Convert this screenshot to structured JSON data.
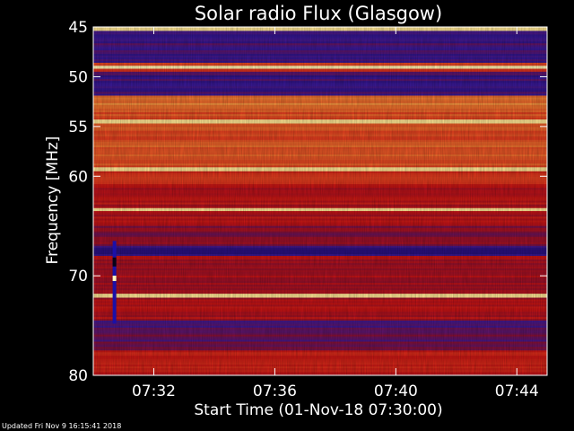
{
  "chart_data": {
    "type": "heatmap",
    "title": "Solar radio Flux (Glasgow)",
    "xlabel": "Start Time (01-Nov-18 07:30:00)",
    "ylabel": "Frequency [MHz]",
    "x_range_minutes": [
      0,
      15
    ],
    "x_ticks": [
      {
        "minutes": 2,
        "label": "07:32"
      },
      {
        "minutes": 6,
        "label": "07:36"
      },
      {
        "minutes": 10,
        "label": "07:40"
      },
      {
        "minutes": 14,
        "label": "07:44"
      }
    ],
    "y_range_mhz": [
      45,
      80
    ],
    "y_inverted": true,
    "y_ticks": [
      45,
      50,
      55,
      60,
      70,
      80
    ],
    "y_tick_labels": [
      "45",
      "50",
      "55",
      "60",
      "70",
      "80"
    ],
    "colormap": [
      "#1e0b6e",
      "#3a1a9a",
      "#8c1030",
      "#c81414",
      "#e23a1e",
      "#f07a30",
      "#ffd060",
      "#fff2b0"
    ],
    "frequency_bands": [
      {
        "mhz": [
          45.0,
          45.4
        ],
        "level": 0.95
      },
      {
        "mhz": [
          45.4,
          48.6
        ],
        "level": 0.16
      },
      {
        "mhz": [
          48.6,
          48.9
        ],
        "level": 0.6
      },
      {
        "mhz": [
          48.9,
          49.2
        ],
        "level": 1.0
      },
      {
        "mhz": [
          49.2,
          49.5
        ],
        "level": 0.6
      },
      {
        "mhz": [
          49.5,
          51.9
        ],
        "level": 0.14
      },
      {
        "mhz": [
          51.9,
          53.4
        ],
        "level": 0.72
      },
      {
        "mhz": [
          53.4,
          54.3
        ],
        "level": 0.62
      },
      {
        "mhz": [
          54.3,
          54.7
        ],
        "level": 0.95
      },
      {
        "mhz": [
          54.7,
          59.1
        ],
        "level": 0.64
      },
      {
        "mhz": [
          59.1,
          59.5
        ],
        "level": 0.95
      },
      {
        "mhz": [
          59.5,
          60.8
        ],
        "level": 0.52
      },
      {
        "mhz": [
          60.8,
          63.2
        ],
        "level": 0.42
      },
      {
        "mhz": [
          63.2,
          63.5
        ],
        "level": 0.95
      },
      {
        "mhz": [
          63.5,
          65.0
        ],
        "level": 0.4
      },
      {
        "mhz": [
          65.0,
          67.0
        ],
        "level": 0.3
      },
      {
        "mhz": [
          67.0,
          68.0
        ],
        "level": 0.12
      },
      {
        "mhz": [
          68.0,
          71.8
        ],
        "level": 0.38
      },
      {
        "mhz": [
          71.8,
          72.2
        ],
        "level": 0.95
      },
      {
        "mhz": [
          72.2,
          74.5
        ],
        "level": 0.4
      },
      {
        "mhz": [
          74.5,
          77.5
        ],
        "level": 0.22
      },
      {
        "mhz": [
          77.5,
          80.0
        ],
        "level": 0.45
      }
    ],
    "burst_column": {
      "minutes": 0.7,
      "mhz": [
        66.5,
        74.8
      ]
    }
  },
  "footer": {
    "updated": "Updated Fri Nov  9 16:15:41 2018"
  }
}
